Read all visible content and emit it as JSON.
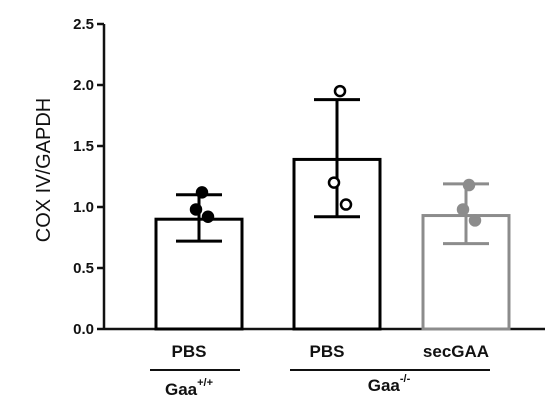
{
  "chart_data": {
    "type": "bar",
    "ylabel": "COX IV/GAPDH",
    "ylim": [
      0,
      2.5
    ],
    "yticks": [
      "0.0",
      "0.5",
      "1.0",
      "1.5",
      "2.0",
      "2.5"
    ],
    "categories": [
      "PBS",
      "PBS",
      "secGAA"
    ],
    "groups": [
      {
        "base": "Gaa",
        "sup": "+/+",
        "categories": [
          0
        ]
      },
      {
        "base": "Gaa",
        "sup": "-/-",
        "categories": [
          1,
          2
        ]
      }
    ],
    "values": [
      0.9,
      1.39,
      0.93
    ],
    "error_high": [
      1.1,
      1.88,
      1.19
    ],
    "error_low": [
      0.72,
      0.92,
      0.7
    ],
    "points": [
      [
        1.12,
        0.98,
        0.92
      ],
      [
        1.95,
        1.2,
        1.02
      ],
      [
        1.18,
        0.98,
        0.89
      ]
    ],
    "colors": [
      "#000000",
      "#000000",
      "#8c8c8c"
    ],
    "point_fill": [
      "#000000",
      "#ffffff",
      "#8c8c8c"
    ]
  }
}
